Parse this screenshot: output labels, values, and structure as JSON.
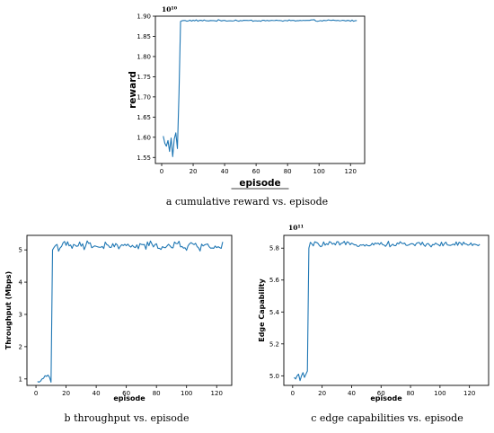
{
  "chart_data": [
    {
      "id": "a",
      "type": "line",
      "caption": "a cumulative reward vs. episode",
      "xlabel": "episode",
      "ylabel": "reward",
      "y_multiplier_label": "10¹⁰",
      "xlim": [
        -4,
        129
      ],
      "ylim": [
        1.535,
        1.9
      ],
      "xticks": [
        0,
        20,
        40,
        60,
        80,
        100,
        120
      ],
      "yticks": [
        1.55,
        1.6,
        1.65,
        1.7,
        1.75,
        1.8,
        1.85,
        1.9
      ],
      "ytick_labels": [
        "1.55",
        "1.60",
        "1.65",
        "1.70",
        "1.75",
        "1.80",
        "1.85",
        "1.90"
      ],
      "grid": false,
      "series": [
        {
          "color": "#1f77b4",
          "x": [
            1,
            2,
            3,
            4,
            5,
            6,
            7,
            8,
            9,
            10,
            11,
            12
          ],
          "y": [
            1.603,
            1.585,
            1.578,
            1.592,
            1.565,
            1.598,
            1.552,
            1.596,
            1.611,
            1.572,
            1.708,
            1.887
          ],
          "plateau": {
            "x_start": 13,
            "x_end": 124,
            "y_mean": 1.889,
            "y_noise": 0.0015
          }
        }
      ]
    },
    {
      "id": "b",
      "type": "line",
      "caption": "b throughput vs. episode",
      "xlabel": "episode",
      "ylabel": "Throughput (Mbps)",
      "xlim": [
        -6,
        130
      ],
      "ylim": [
        0.8,
        5.45
      ],
      "xticks": [
        0,
        20,
        40,
        60,
        80,
        100,
        120
      ],
      "yticks": [
        1,
        2,
        3,
        4,
        5
      ],
      "ytick_labels": [
        "1",
        "2",
        "3",
        "4",
        "5"
      ],
      "grid": false,
      "series": [
        {
          "color": "#1f77b4",
          "x": [
            1,
            2,
            3,
            4,
            5,
            6,
            7,
            8,
            9,
            10,
            11
          ],
          "y": [
            0.92,
            0.9,
            0.93,
            1.0,
            1.02,
            1.1,
            1.08,
            1.12,
            1.05,
            0.9,
            5.0
          ],
          "plateau": {
            "x_start": 12,
            "x_end": 124,
            "y_mean": 5.12,
            "y_noise": 0.11
          }
        }
      ]
    },
    {
      "id": "c",
      "type": "line",
      "caption": "c edge capabilities vs. episode",
      "xlabel": "episode",
      "ylabel": "Edge Capability",
      "y_multiplier_label": "10¹¹",
      "xlim": [
        -6,
        133
      ],
      "ylim": [
        4.94,
        5.88
      ],
      "xticks": [
        0,
        20,
        40,
        60,
        80,
        100,
        120
      ],
      "yticks": [
        5.0,
        5.2,
        5.4,
        5.6,
        5.8
      ],
      "ytick_labels": [
        "5.0",
        "5.2",
        "5.4",
        "5.6",
        "5.8"
      ],
      "grid": false,
      "series": [
        {
          "color": "#1f77b4",
          "x": [
            1,
            2,
            3,
            4,
            5,
            6,
            7,
            8,
            9,
            10,
            11
          ],
          "y": [
            4.99,
            4.98,
            5.0,
            5.01,
            4.97,
            5.0,
            5.02,
            4.99,
            5.01,
            5.03,
            5.8
          ],
          "plateau": {
            "x_start": 12,
            "x_end": 127,
            "y_mean": 5.825,
            "y_noise": 0.012
          }
        }
      ]
    }
  ]
}
